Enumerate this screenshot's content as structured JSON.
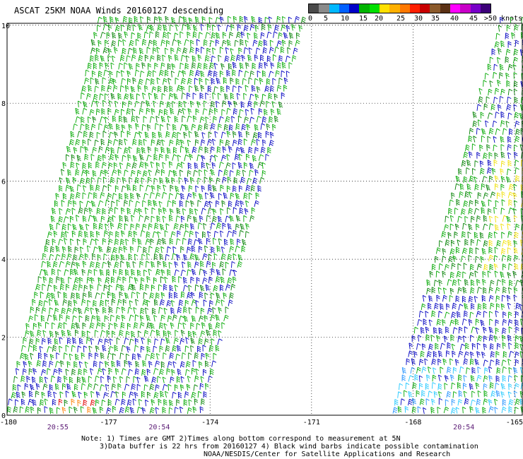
{
  "title": "ASCAT 25KM NOAA Winds 20160127 descending",
  "legend": {
    "ticks": [
      "0",
      "5",
      "10",
      "15",
      "20",
      "25",
      "30",
      "35",
      "40",
      "45",
      ">50 knots"
    ],
    "colors": [
      "#4a4a4a",
      "#8a8a8a",
      "#00b8ff",
      "#0060ff",
      "#0000c8",
      "#00b400",
      "#00e000",
      "#ffe000",
      "#ffb000",
      "#ff7800",
      "#ff1e00",
      "#c80000",
      "#8b5a2b",
      "#5a3014",
      "#ff00ff",
      "#c800c8",
      "#7800c8",
      "#3c0078"
    ]
  },
  "axes": {
    "x_ticks": [
      "-180",
      "-177",
      "-174",
      "-171",
      "-168",
      "-165"
    ],
    "y_ticks": [
      "0",
      "2",
      "4",
      "6",
      "8",
      "10"
    ],
    "y_values": [
      0,
      2,
      4,
      6,
      8,
      10
    ],
    "x_values": [
      -180,
      -177,
      -174,
      -171,
      -168,
      -165
    ],
    "xlim": [
      -180,
      -164.75
    ],
    "ylim": [
      0,
      10.05
    ]
  },
  "times": [
    {
      "label": "20:55",
      "lon": -178.5
    },
    {
      "label": "20:54",
      "lon": -175.5
    },
    {
      "label": "20:54",
      "lon": -166.5
    }
  ],
  "swaths": {
    "left": {
      "bottom_lon": [
        -180,
        -174.3
      ],
      "top_lon": [
        -177.3,
        -171.3
      ]
    },
    "right": {
      "bottom_lon": [
        -168.6,
        -164.75
      ],
      "top_lon": [
        -165.4,
        -164.75
      ]
    }
  },
  "barb_colors": {
    "green": "#00a800",
    "dark_green": "#008000",
    "blue": "#0000c0",
    "light_blue": "#2090ff",
    "cyan": "#20c8ff",
    "yellow": "#f0e000",
    "orange": "#ff8000",
    "red": "#e00000"
  },
  "footer": {
    "line1": "Note: 1) Times are GMT 2)Times along bottom correspond to measurement at 5N",
    "line2": "3)Data buffer is 22 hrs from 20160127 4) Black wind barbs indicate possible contamination",
    "line3": "NOAA/NESDIS/Center for Satellite Applications and Research"
  }
}
